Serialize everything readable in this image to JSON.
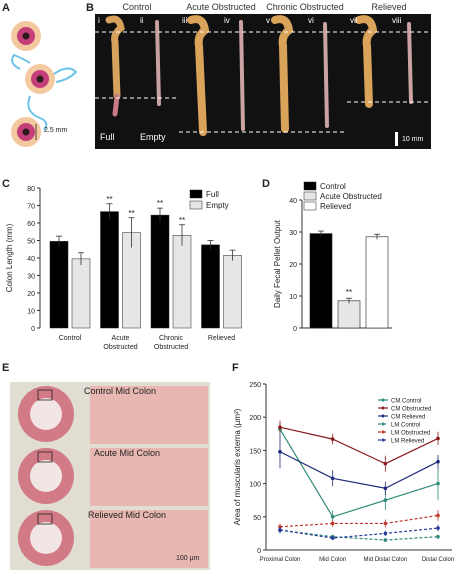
{
  "panels": {
    "A": "A",
    "B": "B",
    "C": "C",
    "D": "D",
    "E": "E",
    "F": "F"
  },
  "panel_a": {
    "scale_text": "2.5 mm"
  },
  "panel_b": {
    "groups": [
      "Control",
      "Acute Obstructed",
      "Chronic Obstructed",
      "Relieved"
    ],
    "numerals": [
      "i",
      "ii",
      "iii",
      "iv",
      "v",
      "vi",
      "vii",
      "viii"
    ],
    "full_label": "Full",
    "empty_label": "Empty",
    "scale_text": "10 mm"
  },
  "panel_e": {
    "labels": [
      "Control Mid Colon",
      "Acute Mid Colon",
      "Relieved Mid Colon"
    ],
    "scale_text": "100 µm"
  },
  "chart_data": [
    {
      "type": "bar",
      "panel": "C",
      "ylabel": "Colon Length (mm)",
      "ylim": [
        0,
        80
      ],
      "yticks": [
        0,
        10,
        20,
        30,
        40,
        50,
        60,
        70,
        80
      ],
      "categories": [
        "Control",
        "Acute Obstructed",
        "Chronic Obstructed",
        "Relieved"
      ],
      "category_lines": [
        [
          "Control"
        ],
        [
          "Acute",
          "Obstructed"
        ],
        [
          "Chronic",
          "Obstructed"
        ],
        [
          "Relieved"
        ]
      ],
      "series": [
        {
          "name": "Full",
          "color": "#000000",
          "values": [
            49.5,
            66.5,
            64.5,
            47.5
          ],
          "errors": [
            3,
            4.5,
            4,
            2.5
          ],
          "sig": [
            "",
            "**",
            "**",
            ""
          ]
        },
        {
          "name": "Empty",
          "color": "#e6e6e6",
          "values": [
            39.5,
            54.5,
            53,
            41.5
          ],
          "errors": [
            3.5,
            8.5,
            6,
            3
          ],
          "sig": [
            "",
            "**",
            "**",
            ""
          ]
        }
      ],
      "legend": "top-right"
    },
    {
      "type": "bar",
      "panel": "D",
      "ylabel": "Daily Fecal Pellet Output",
      "ylim": [
        0,
        40
      ],
      "yticks": [
        0,
        10,
        20,
        30,
        40
      ],
      "series": [
        {
          "name": "Control",
          "color": "#000000",
          "value": 29.5,
          "error": 0.8,
          "sig": ""
        },
        {
          "name": "Acute Obstructed",
          "color": "#e6e6e6",
          "value": 8.5,
          "error": 0.8,
          "sig": "**"
        },
        {
          "name": "Relieved",
          "color": "#ffffff",
          "value": 28.5,
          "error": 0.8,
          "sig": ""
        }
      ],
      "legend": "top-left"
    },
    {
      "type": "line",
      "panel": "F",
      "ylabel": "Area of muscularis externa (µm²)",
      "ylim": [
        0,
        250
      ],
      "yticks": [
        0,
        50,
        100,
        150,
        200,
        250
      ],
      "categories": [
        "Proximal Colon",
        "Mid Colon",
        "Mid Distal Colon",
        "Distal Colon"
      ],
      "series": [
        {
          "name": "CM Control",
          "color": "#2e8b7a",
          "dash": false,
          "values": [
            182,
            50,
            75,
            100
          ],
          "errors": [
            10,
            10,
            15,
            25
          ]
        },
        {
          "name": "CM Obstructed",
          "color": "#8b1a1a",
          "dash": false,
          "values": [
            185,
            167,
            130,
            168
          ],
          "errors": [
            10,
            8,
            12,
            10
          ]
        },
        {
          "name": "CM Relieved",
          "color": "#1f2a7a",
          "dash": false,
          "values": [
            148,
            108,
            93,
            133
          ],
          "errors": [
            25,
            12,
            10,
            10
          ]
        },
        {
          "name": "LM Control",
          "color": "#2e8b7a",
          "dash": true,
          "values": [
            30,
            20,
            15,
            20
          ],
          "errors": [
            5,
            3,
            3,
            3
          ]
        },
        {
          "name": "LM Obstructed",
          "color": "#c0392b",
          "dash": true,
          "values": [
            35,
            40,
            40,
            52
          ],
          "errors": [
            5,
            5,
            6,
            8
          ]
        },
        {
          "name": "LM Relieved",
          "color": "#2a3a9a",
          "dash": true,
          "values": [
            30,
            18,
            25,
            33
          ],
          "errors": [
            5,
            3,
            4,
            5
          ]
        }
      ],
      "legend": "top-right"
    }
  ]
}
